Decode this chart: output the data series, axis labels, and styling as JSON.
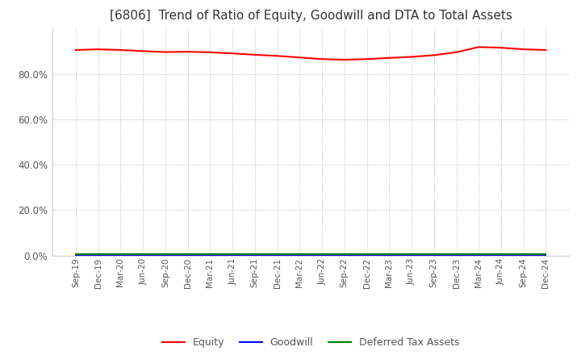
{
  "title": "[6806]  Trend of Ratio of Equity, Goodwill and DTA to Total Assets",
  "title_fontsize": 11,
  "background_color": "#ffffff",
  "grid_color": "#aaaaaa",
  "x_labels": [
    "Sep-19",
    "Dec-19",
    "Mar-20",
    "Jun-20",
    "Sep-20",
    "Dec-20",
    "Mar-21",
    "Jun-21",
    "Sep-21",
    "Dec-21",
    "Mar-22",
    "Jun-22",
    "Sep-22",
    "Dec-22",
    "Mar-23",
    "Jun-23",
    "Sep-23",
    "Dec-23",
    "Mar-24",
    "Jun-24",
    "Sep-24",
    "Dec-24"
  ],
  "equity": [
    90.5,
    90.8,
    90.5,
    90.0,
    89.6,
    89.7,
    89.5,
    89.0,
    88.4,
    87.9,
    87.2,
    86.5,
    86.2,
    86.5,
    87.0,
    87.5,
    88.2,
    89.5,
    91.8,
    91.5,
    90.8,
    90.5
  ],
  "goodwill": [
    0.0,
    0.0,
    0.0,
    0.0,
    0.0,
    0.0,
    0.0,
    0.0,
    0.0,
    0.0,
    0.0,
    0.0,
    0.0,
    0.0,
    0.0,
    0.0,
    0.0,
    0.0,
    0.0,
    0.0,
    0.0,
    0.0
  ],
  "dta": [
    0.8,
    0.8,
    0.8,
    0.8,
    0.8,
    0.8,
    0.8,
    0.8,
    0.8,
    0.8,
    0.8,
    0.8,
    0.8,
    0.8,
    0.8,
    0.8,
    0.8,
    0.8,
    0.8,
    0.8,
    0.8,
    0.8
  ],
  "equity_color": "#ff0000",
  "goodwill_color": "#0000ff",
  "dta_color": "#008000",
  "ylim": [
    0,
    100
  ],
  "yticks": [
    0,
    20,
    40,
    60,
    80
  ],
  "legend_labels": [
    "Equity",
    "Goodwill",
    "Deferred Tax Assets"
  ]
}
